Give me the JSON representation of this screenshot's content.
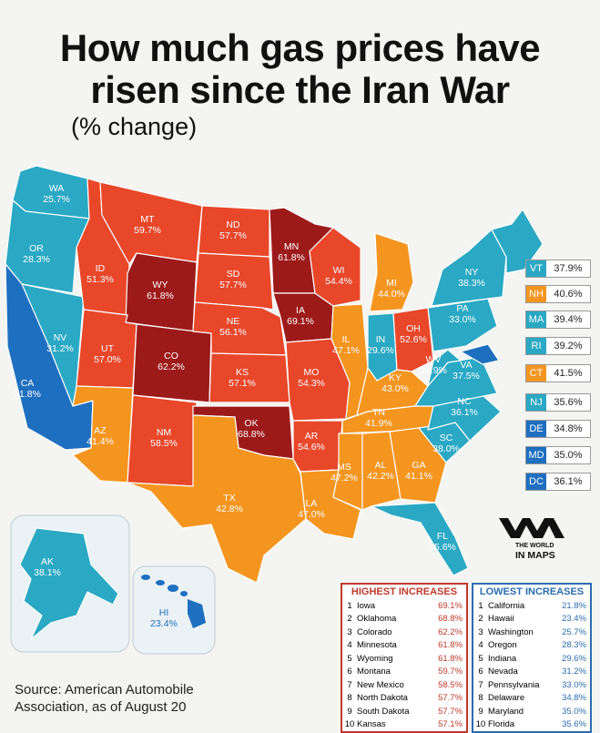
{
  "title_line1": "How much gas prices have",
  "title_line2": "risen since the Iran War",
  "subtitle": "(% change)",
  "colors": {
    "teal": "#2aa8c4",
    "blue": "#1f6fc0",
    "orange": "#f4951f",
    "red_orange": "#e8472a",
    "dark_red": "#9d1a1a"
  },
  "states": {
    "WA": {
      "abbr": "WA",
      "pct": "25.7%"
    },
    "OR": {
      "abbr": "OR",
      "pct": "28.3%"
    },
    "CA": {
      "abbr": "CA",
      "pct": "21.8%"
    },
    "NV": {
      "abbr": "NV",
      "pct": "31.2%"
    },
    "ID": {
      "abbr": "ID",
      "pct": "51.3%"
    },
    "MT": {
      "abbr": "MT",
      "pct": "59.7%"
    },
    "WY": {
      "abbr": "WY",
      "pct": "61.8%"
    },
    "UT": {
      "abbr": "UT",
      "pct": "57.0%"
    },
    "CO": {
      "abbr": "CO",
      "pct": "62.2%"
    },
    "AZ": {
      "abbr": "AZ",
      "pct": "41.4%"
    },
    "NM": {
      "abbr": "NM",
      "pct": "58.5%"
    },
    "ND": {
      "abbr": "ND",
      "pct": "57.7%"
    },
    "SD": {
      "abbr": "SD",
      "pct": "57.7%"
    },
    "NE": {
      "abbr": "NE",
      "pct": "56.1%"
    },
    "KS": {
      "abbr": "KS",
      "pct": "57.1%"
    },
    "OK": {
      "abbr": "OK",
      "pct": "68.8%"
    },
    "TX": {
      "abbr": "TX",
      "pct": "42.8%"
    },
    "MN": {
      "abbr": "MN",
      "pct": "61.8%"
    },
    "IA": {
      "abbr": "IA",
      "pct": "69.1%"
    },
    "MO": {
      "abbr": "MO",
      "pct": "54.3%"
    },
    "AR": {
      "abbr": "AR",
      "pct": "54.6%"
    },
    "LA": {
      "abbr": "LA",
      "pct": "47.0%"
    },
    "WI": {
      "abbr": "WI",
      "pct": "54.4%"
    },
    "IL": {
      "abbr": "IL",
      "pct": "47.1%"
    },
    "MI": {
      "abbr": "MI",
      "pct": "44.0%"
    },
    "IN": {
      "abbr": "IN",
      "pct": "29.6%"
    },
    "OH": {
      "abbr": "OH",
      "pct": "52.6%"
    },
    "KY": {
      "abbr": "KY",
      "pct": "43.0%"
    },
    "TN": {
      "abbr": "TN",
      "pct": "41.9%"
    },
    "MS": {
      "abbr": "MS",
      "pct": "47.2%"
    },
    "AL": {
      "abbr": "AL",
      "pct": "42.2%"
    },
    "GA": {
      "abbr": "GA",
      "pct": "41.1%"
    },
    "FL": {
      "abbr": "FL",
      "pct": "35.6%"
    },
    "SC": {
      "abbr": "SC",
      "pct": "38.0%"
    },
    "NC": {
      "abbr": "NC",
      "pct": "36.1%"
    },
    "VA": {
      "abbr": "VA",
      "pct": "37.5%"
    },
    "WV": {
      "abbr": "WV",
      "pct": "35.9%"
    },
    "PA": {
      "abbr": "PA",
      "pct": "33.0%"
    },
    "NY": {
      "abbr": "NY",
      "pct": "38.3%"
    },
    "AK": {
      "abbr": "AK",
      "pct": "38.1%"
    },
    "HI": {
      "abbr": "HI",
      "pct": "23.4%"
    }
  },
  "legend": [
    {
      "abbr": "VT",
      "pct": "37.9%",
      "color": "#2aa8c4"
    },
    {
      "abbr": "NH",
      "pct": "40.6%",
      "color": "#f4951f"
    },
    {
      "abbr": "MA",
      "pct": "39.4%",
      "color": "#2aa8c4"
    },
    {
      "abbr": "RI",
      "pct": "39.2%",
      "color": "#2aa8c4"
    },
    {
      "abbr": "CT",
      "pct": "41.5%",
      "color": "#f4951f"
    },
    {
      "abbr": "NJ",
      "pct": "35.6%",
      "color": "#2aa8c4"
    },
    {
      "abbr": "DE",
      "pct": "34.8%",
      "color": "#1f6fc0"
    },
    {
      "abbr": "MD",
      "pct": "35.0%",
      "color": "#1f6fc0"
    },
    {
      "abbr": "DC",
      "pct": "36.1%",
      "color": "#1f6fc0"
    }
  ],
  "highest": {
    "heading": "HIGHEST INCREASES",
    "rows": [
      {
        "rank": "1",
        "name": "Iowa",
        "pct": "69.1%"
      },
      {
        "rank": "2",
        "name": "Oklahoma",
        "pct": "68.8%"
      },
      {
        "rank": "3",
        "name": "Colorado",
        "pct": "62.2%"
      },
      {
        "rank": "4",
        "name": "Minnesota",
        "pct": "61.8%"
      },
      {
        "rank": "5",
        "name": "Wyoming",
        "pct": "61.8%"
      },
      {
        "rank": "6",
        "name": "Montana",
        "pct": "59.7%"
      },
      {
        "rank": "7",
        "name": "New Mexico",
        "pct": "58.5%"
      },
      {
        "rank": "8",
        "name": "North Dakota",
        "pct": "57.7%"
      },
      {
        "rank": "9",
        "name": "South Dakota",
        "pct": "57.7%"
      },
      {
        "rank": "10",
        "name": "Kansas",
        "pct": "57.1%"
      }
    ]
  },
  "lowest": {
    "heading": "LOWEST INCREASES",
    "rows": [
      {
        "rank": "1",
        "name": "California",
        "pct": "21.8%"
      },
      {
        "rank": "2",
        "name": "Hawaii",
        "pct": "23.4%"
      },
      {
        "rank": "3",
        "name": "Washington",
        "pct": "25.7%"
      },
      {
        "rank": "4",
        "name": "Oregon",
        "pct": "28.3%"
      },
      {
        "rank": "5",
        "name": "Indiana",
        "pct": "29.6%"
      },
      {
        "rank": "6",
        "name": "Nevada",
        "pct": "31.2%"
      },
      {
        "rank": "7",
        "name": "Pennsylvania",
        "pct": "33.0%"
      },
      {
        "rank": "8",
        "name": "Delaware",
        "pct": "34.8%"
      },
      {
        "rank": "9",
        "name": "Maryland",
        "pct": "35.0%"
      },
      {
        "rank": "10",
        "name": "Florida",
        "pct": "35.6%"
      }
    ]
  },
  "source_line1": "Source: American Automobile",
  "source_line2": "Association, as of August 20",
  "brand_line1": "THE WORLD",
  "brand_line2": "IN MAPS"
}
